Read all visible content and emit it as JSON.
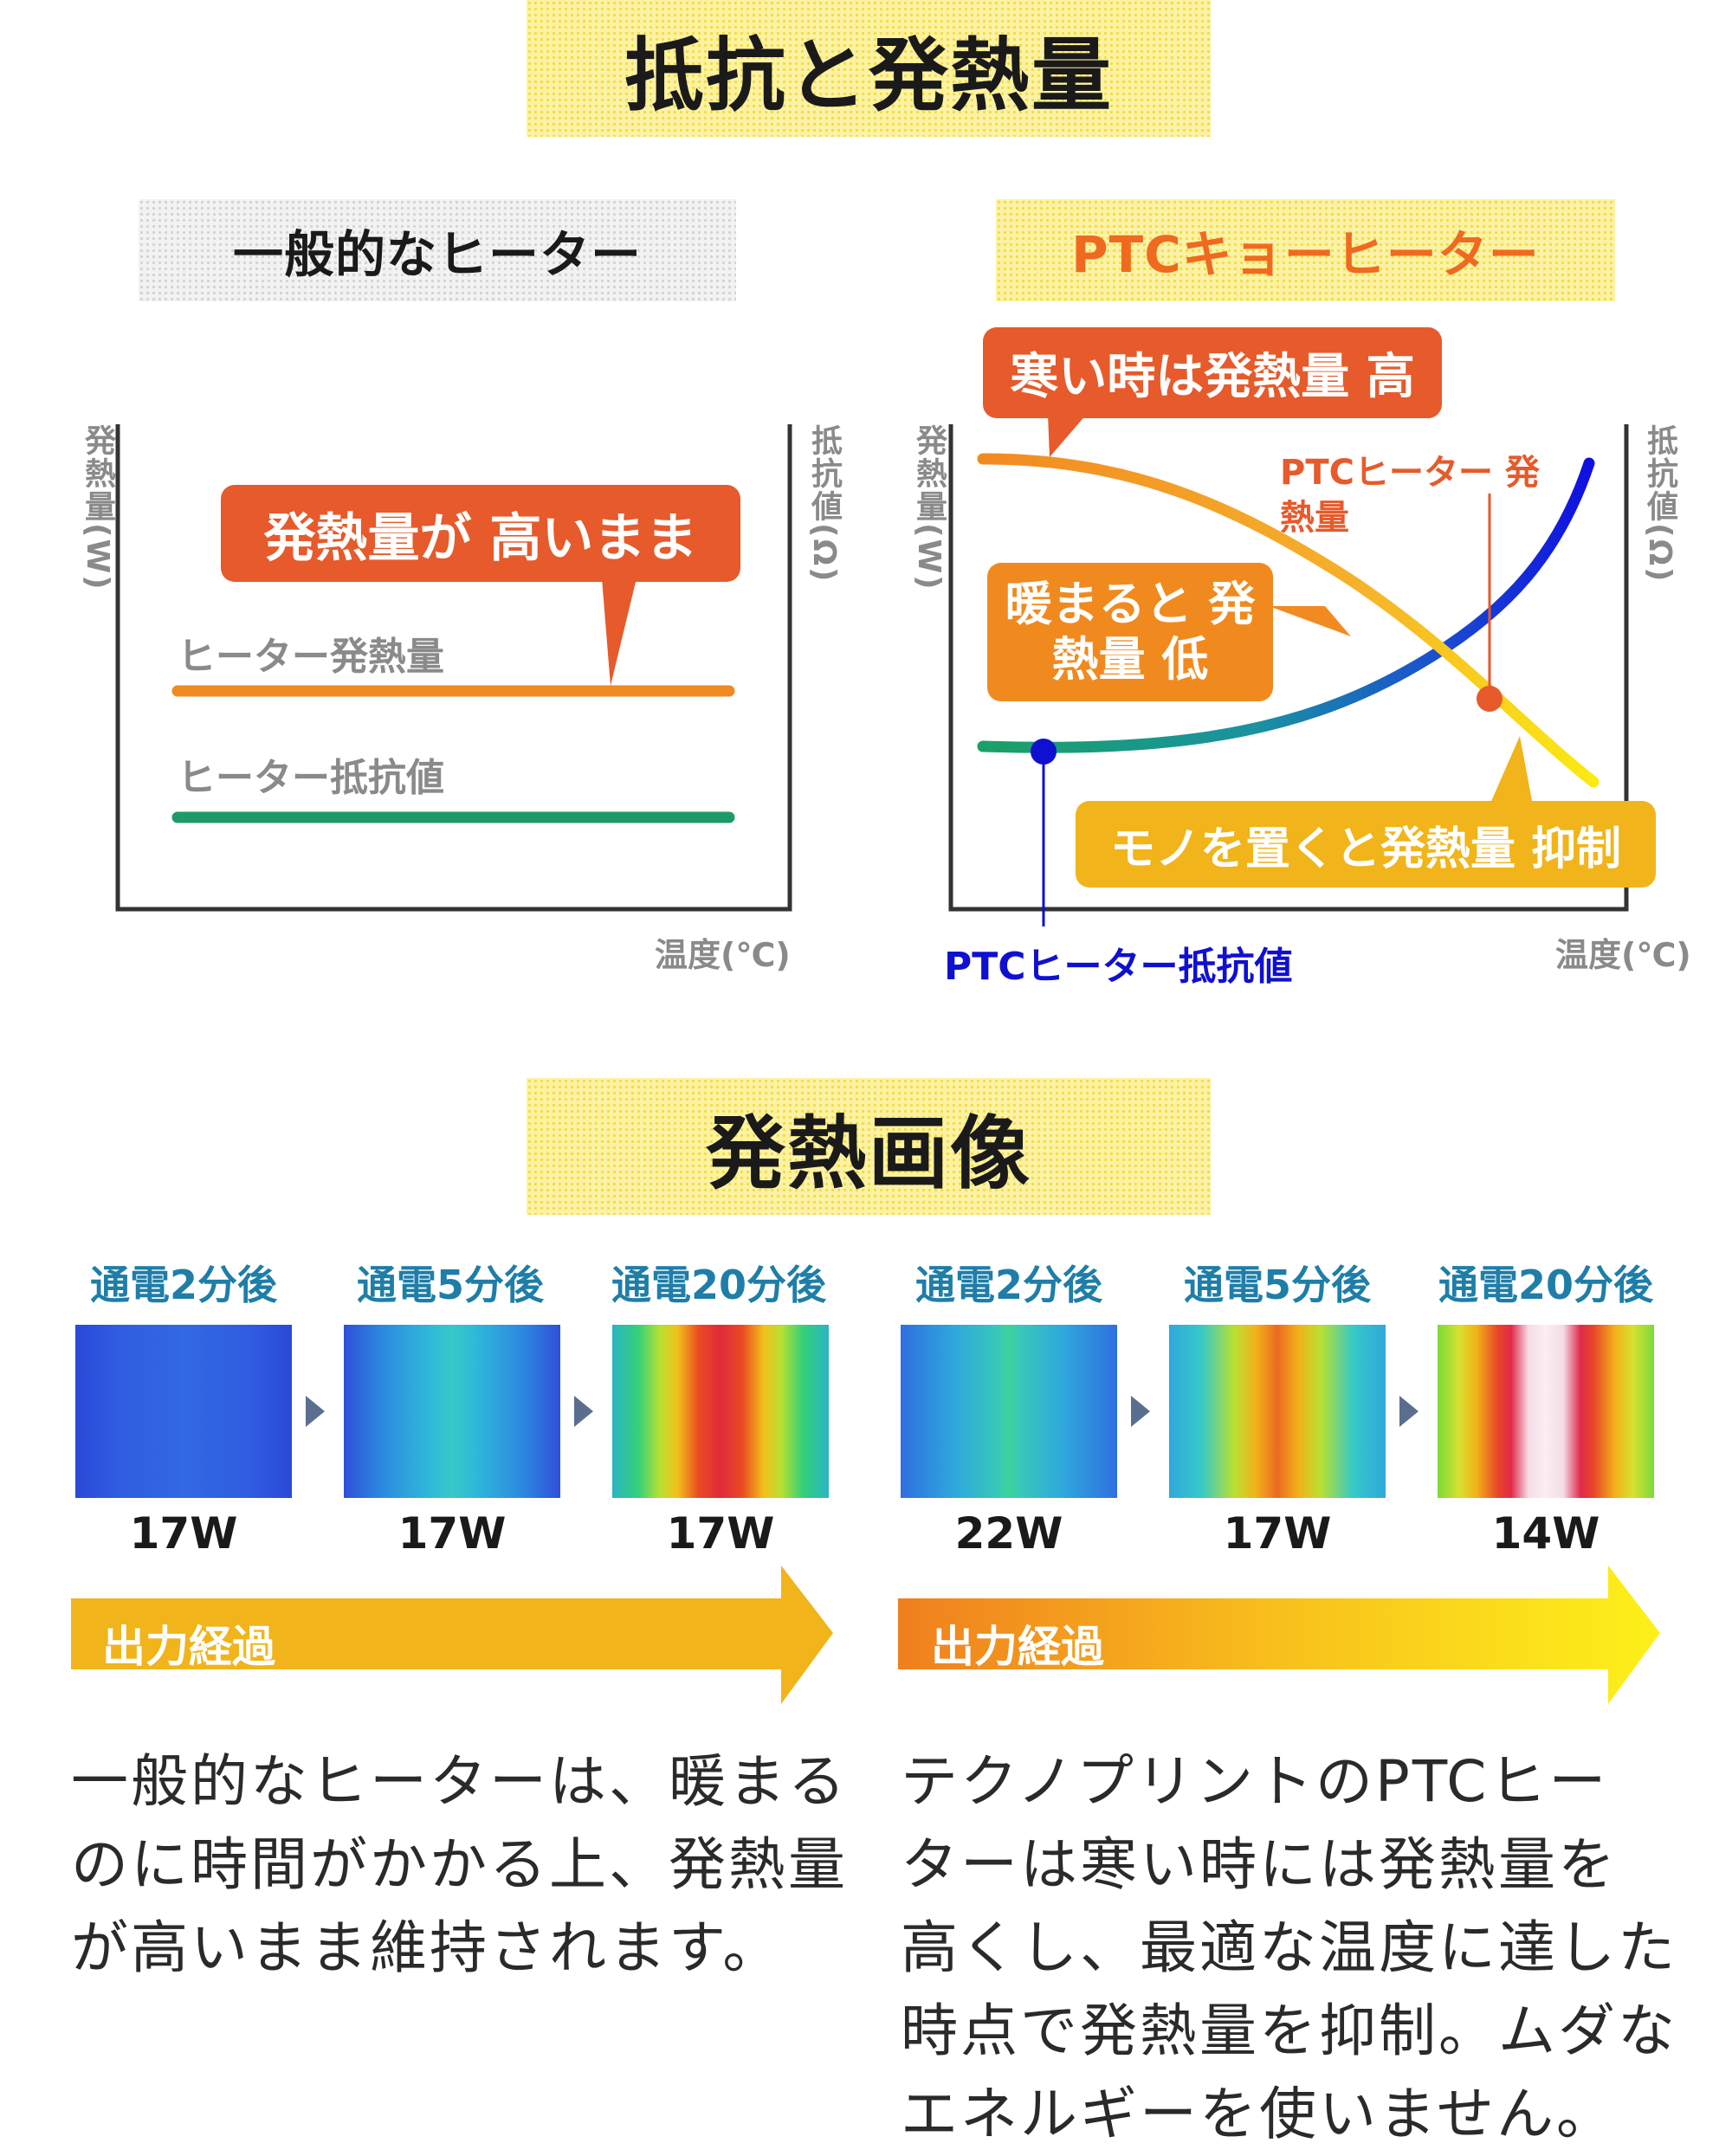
{
  "section1": {
    "title": "抵抗と発熱量"
  },
  "left_panel": {
    "title": "一般的なヒーター",
    "y_axis_left": "発熱量(W)",
    "y_axis_right": "抵抗値(Ω)",
    "x_axis": "温度(℃)",
    "callout": "発熱量が 高いまま",
    "line1_label": "ヒーター発熱量",
    "line2_label": "ヒーター抵抗値",
    "colors": {
      "heat": "#f08a24",
      "resistance": "#1e9a68",
      "callout": "#e65a2b"
    }
  },
  "right_panel": {
    "title": "PTCキョーヒーター",
    "y_axis_left": "発熱量(W)",
    "y_axis_right": "抵抗値(Ω)",
    "x_axis": "温度(℃)",
    "callout_cold": "寒い時は発熱量 高",
    "callout_warm": "暖まると 発熱量 低",
    "callout_object": "モノを置くと発熱量 抑制",
    "ptc_heat_label": "PTCヒーター 発熱量",
    "ptc_resistance_label": "PTCヒーター抵抗値",
    "colors": {
      "heat": "#f08a24",
      "resistance": "#1010d0",
      "accent": "#e65a2b",
      "title": "#ef6a1f"
    }
  },
  "section2": {
    "title": "発熱画像"
  },
  "thermal_left": {
    "items": [
      {
        "caption": "通電2分後",
        "watt": "17W"
      },
      {
        "caption": "通電5分後",
        "watt": "17W"
      },
      {
        "caption": "通電20分後",
        "watt": "17W"
      }
    ],
    "arrow_label": "出力経過",
    "description": [
      "一般的なヒーターは、暖まる",
      "のに時間がかかる上、発熱量",
      "が高いまま維持されます。"
    ]
  },
  "thermal_right": {
    "items": [
      {
        "caption": "通電2分後",
        "watt": "22W"
      },
      {
        "caption": "通電5分後",
        "watt": "17W"
      },
      {
        "caption": "通電20分後",
        "watt": "14W"
      }
    ],
    "arrow_label": "出力経過",
    "description": [
      "テクノプリントのPTCヒー",
      "ターは寒い時には発熱量を",
      "高くし、最適な温度に達した",
      "時点で発熱量を抑制。ムダな",
      "エネルギーを使いません。"
    ]
  }
}
